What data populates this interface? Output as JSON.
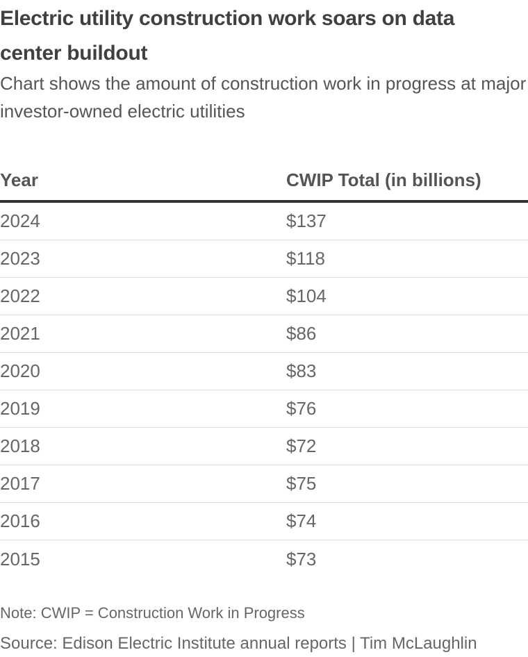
{
  "chart_data": {
    "type": "table",
    "title": "Electric utility construction work soars on data center buildout",
    "subtitle": "Chart shows the amount of construction work in progress at major investor-owned electric utilities",
    "columns": [
      "Year",
      "CWIP Total (in billions)"
    ],
    "rows": [
      {
        "year": "2024",
        "value": "$137"
      },
      {
        "year": "2023",
        "value": "$118"
      },
      {
        "year": "2022",
        "value": "$104"
      },
      {
        "year": "2021",
        "value": "$86"
      },
      {
        "year": "2020",
        "value": "$83"
      },
      {
        "year": "2019",
        "value": "$76"
      },
      {
        "year": "2018",
        "value": "$72"
      },
      {
        "year": "2017",
        "value": "$75"
      },
      {
        "year": "2016",
        "value": "$74"
      },
      {
        "year": "2015",
        "value": "$73"
      }
    ],
    "note": "Note: CWIP = Construction Work in Progress",
    "source": "Source: Edison Electric Institute annual reports | Tim McLaughlin"
  }
}
